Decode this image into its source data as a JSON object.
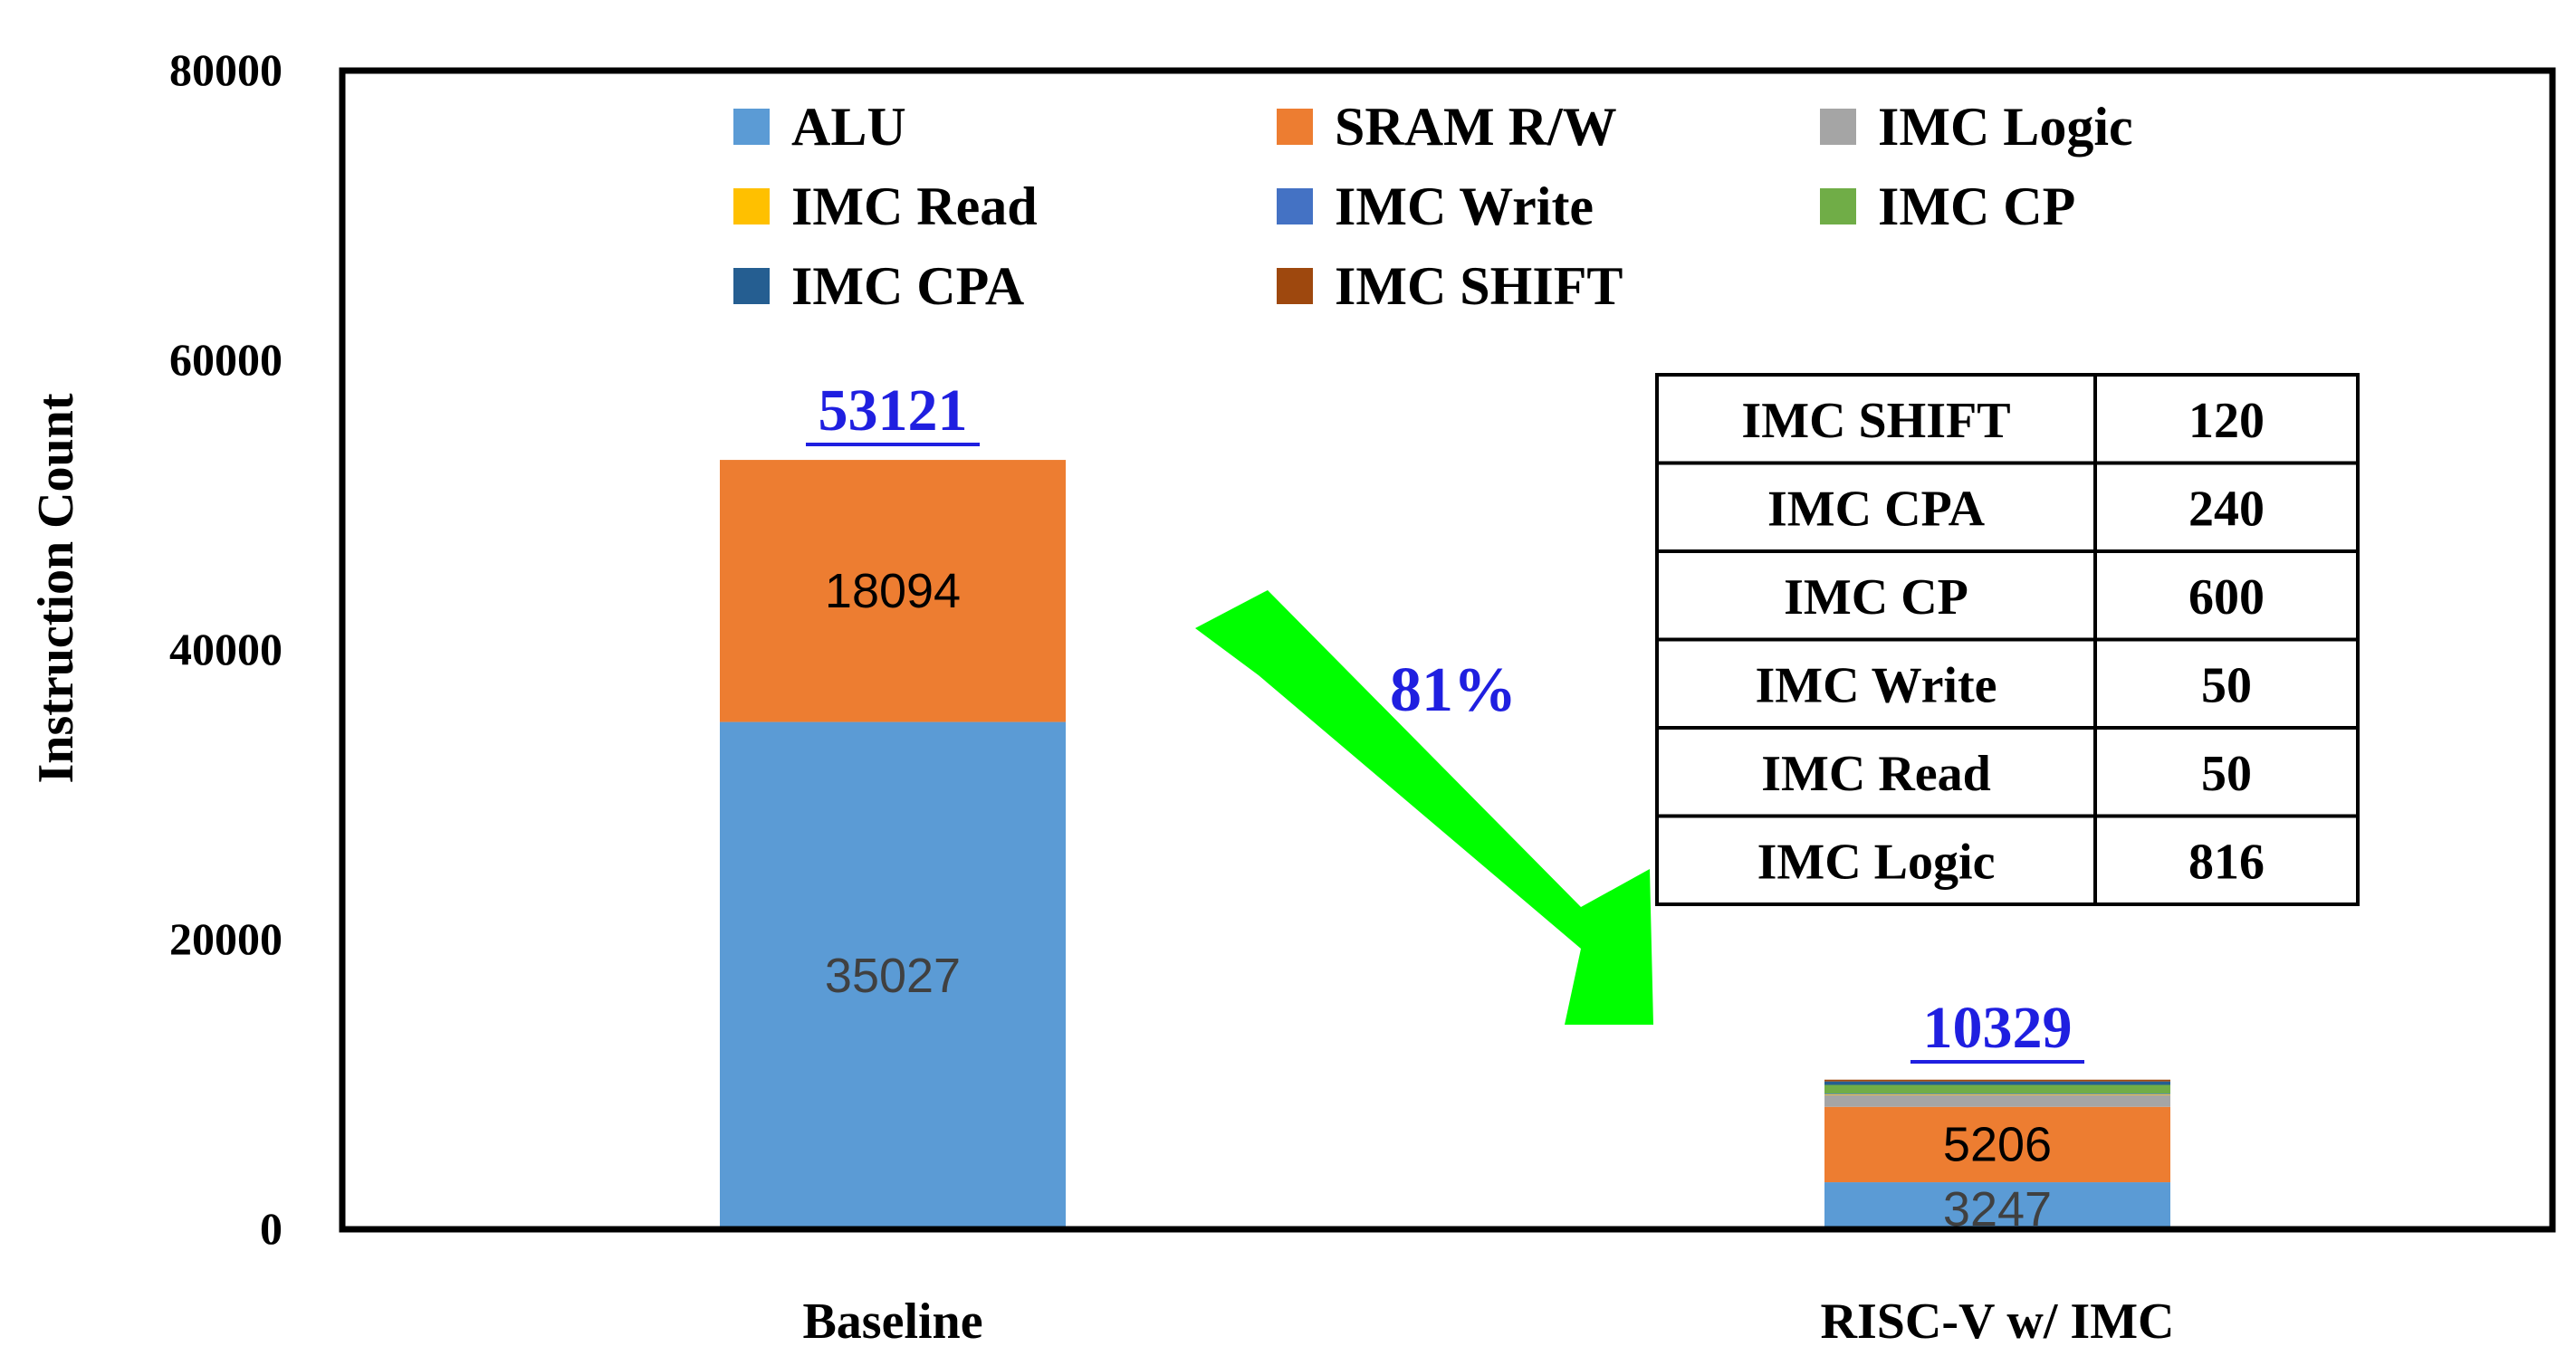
{
  "chart_data": {
    "type": "bar",
    "stacked": true,
    "ylabel": "Instruction Count",
    "ylim": [
      0,
      80000
    ],
    "yticks": [
      0,
      20000,
      40000,
      60000,
      80000
    ],
    "categories": [
      "Baseline",
      "RISC-V w/ IMC"
    ],
    "totals": [
      "53121",
      "10329"
    ],
    "series": [
      {
        "name": "ALU",
        "color": "#5B9BD5",
        "values": [
          35027,
          3247
        ],
        "labels": [
          "35027",
          "3247"
        ]
      },
      {
        "name": "SRAM R/W",
        "color": "#ED7D31",
        "values": [
          18094,
          5206
        ],
        "labels": [
          "18094",
          "5206"
        ]
      },
      {
        "name": "IMC Logic",
        "color": "#A5A5A5",
        "values": [
          0,
          816
        ],
        "labels": [
          "",
          ""
        ]
      },
      {
        "name": "IMC Read",
        "color": "#FFC000",
        "values": [
          0,
          50
        ],
        "labels": [
          "",
          ""
        ]
      },
      {
        "name": "IMC Write",
        "color": "#4472C4",
        "values": [
          0,
          50
        ],
        "labels": [
          "",
          ""
        ]
      },
      {
        "name": "IMC CP",
        "color": "#70AD47",
        "values": [
          0,
          600
        ],
        "labels": [
          "",
          ""
        ]
      },
      {
        "name": "IMC CPA",
        "color": "#255E91",
        "values": [
          0,
          240
        ],
        "labels": [
          "",
          ""
        ]
      },
      {
        "name": "IMC SHIFT",
        "color": "#9E480E",
        "values": [
          0,
          120
        ],
        "labels": [
          "",
          ""
        ]
      }
    ],
    "legend_position": "top",
    "annotation": {
      "text": "81%",
      "color": "#1F1FE0",
      "arrow_color": "#00FF00"
    },
    "inset_table": {
      "position": "right",
      "rows": [
        {
          "name": "IMC SHIFT",
          "value": "120"
        },
        {
          "name": "IMC CPA",
          "value": "240"
        },
        {
          "name": "IMC CP",
          "value": "600"
        },
        {
          "name": "IMC Write",
          "value": "50"
        },
        {
          "name": "IMC Read",
          "value": "50"
        },
        {
          "name": "IMC Logic",
          "value": "816"
        }
      ]
    }
  }
}
